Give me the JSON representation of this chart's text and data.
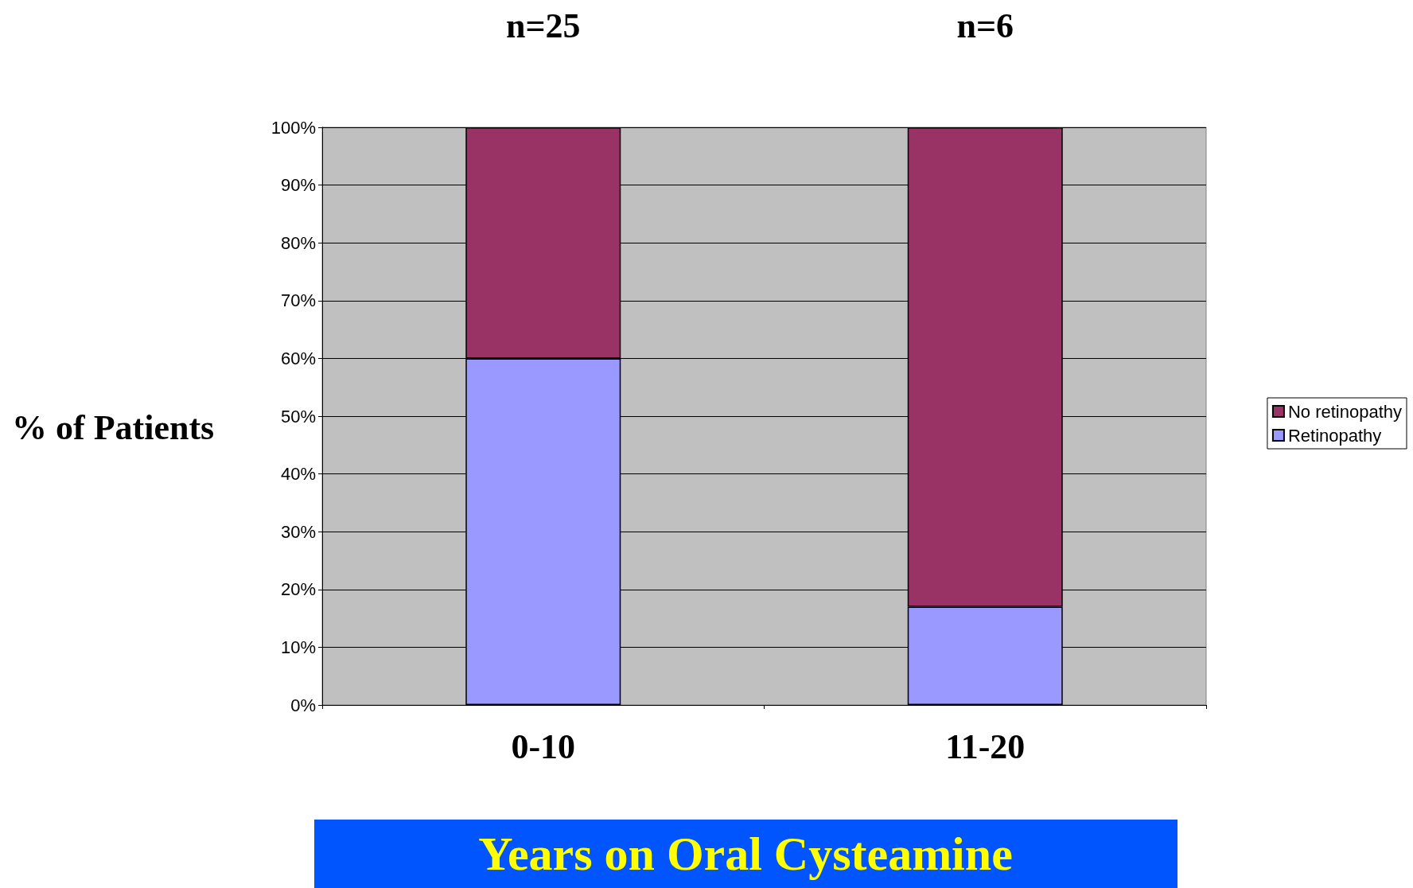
{
  "chart_data": {
    "type": "bar",
    "stacked": true,
    "categories": [
      "0-10",
      "11-20"
    ],
    "series": [
      {
        "name": "Retinopathy",
        "color": "#9999ff",
        "values": [
          60,
          17
        ]
      },
      {
        "name": "No retinopathy",
        "color": "#993366",
        "values": [
          40,
          83
        ]
      }
    ],
    "ylabel": "% of Patients",
    "xlabel": "Years on Oral Cysteamine",
    "ylim": [
      0,
      100
    ],
    "yticks": [
      {
        "value": 0,
        "label": "0%"
      },
      {
        "value": 10,
        "label": "10%"
      },
      {
        "value": 20,
        "label": "20%"
      },
      {
        "value": 30,
        "label": "30%"
      },
      {
        "value": 40,
        "label": "40%"
      },
      {
        "value": 50,
        "label": "50%"
      },
      {
        "value": 60,
        "label": "60%"
      },
      {
        "value": 70,
        "label": "70%"
      },
      {
        "value": 80,
        "label": "80%"
      },
      {
        "value": 90,
        "label": "90%"
      },
      {
        "value": 100,
        "label": "100%"
      }
    ],
    "annotations": [
      "n=25",
      "n=6"
    ],
    "grid": "y",
    "legend": "right"
  }
}
